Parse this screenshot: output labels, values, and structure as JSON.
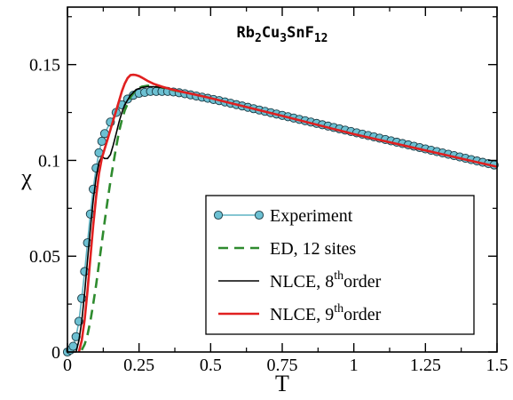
{
  "chart_data": {
    "type": "line",
    "title": {
      "base": "Rb",
      "parts": [
        [
          "2",
          "sub"
        ],
        [
          "Cu",
          ""
        ],
        [
          "3",
          "sub"
        ],
        [
          "SnF",
          ""
        ],
        [
          "12",
          "sub"
        ]
      ]
    },
    "xlabel": "T",
    "ylabel": "χ",
    "xlim": [
      0,
      1.5
    ],
    "ylim": [
      0,
      0.18
    ],
    "xticks": [
      0,
      0.25,
      0.5,
      0.75,
      1,
      1.25,
      1.5
    ],
    "xtick_labels": [
      "0",
      "0.25",
      "0.5",
      "0.75",
      "1",
      "1.25",
      "1.5"
    ],
    "yticks": [
      0,
      0.05,
      0.1,
      0.15
    ],
    "ytick_labels": [
      "0",
      "0.05",
      "0.1",
      "0.15"
    ],
    "grid": false,
    "legend_position": "lower-right",
    "series": [
      {
        "name": "Experiment",
        "style": "line-markers",
        "color": "#5fb3c3",
        "marker_fill": "#6cc0d2",
        "x": [
          0.0,
          0.01,
          0.02,
          0.03,
          0.04,
          0.05,
          0.06,
          0.07,
          0.08,
          0.09,
          0.1,
          0.11,
          0.12,
          0.13,
          0.15,
          0.17,
          0.19,
          0.21,
          0.23,
          0.25,
          0.27,
          0.29,
          0.31,
          0.33,
          0.35,
          0.37,
          0.39,
          0.41,
          0.43,
          0.45,
          0.47,
          0.49,
          0.51,
          0.53,
          0.55,
          0.57,
          0.59,
          0.61,
          0.63,
          0.65,
          0.67,
          0.69,
          0.71,
          0.73,
          0.75,
          0.77,
          0.79,
          0.81,
          0.83,
          0.85,
          0.87,
          0.89,
          0.91,
          0.93,
          0.95,
          0.97,
          0.99,
          1.01,
          1.03,
          1.05,
          1.07,
          1.09,
          1.11,
          1.13,
          1.15,
          1.17,
          1.19,
          1.21,
          1.23,
          1.25,
          1.27,
          1.29,
          1.31,
          1.33,
          1.35,
          1.37,
          1.39,
          1.41,
          1.43,
          1.45,
          1.47,
          1.49
        ],
        "y": [
          0.0,
          0.001,
          0.003,
          0.008,
          0.016,
          0.028,
          0.042,
          0.057,
          0.072,
          0.085,
          0.096,
          0.104,
          0.11,
          0.114,
          0.12,
          0.125,
          0.129,
          0.132,
          0.134,
          0.135,
          0.1355,
          0.136,
          0.136,
          0.136,
          0.136,
          0.1357,
          0.1353,
          0.1348,
          0.1342,
          0.1336,
          0.133,
          0.1324,
          0.1318,
          0.1312,
          0.1305,
          0.1298,
          0.1291,
          0.1284,
          0.1277,
          0.127,
          0.1263,
          0.1256,
          0.1249,
          0.1242,
          0.1235,
          0.1228,
          0.1221,
          0.1214,
          0.1207,
          0.12,
          0.1193,
          0.1186,
          0.1179,
          0.1172,
          0.1165,
          0.1158,
          0.1151,
          0.1144,
          0.1137,
          0.113,
          0.1123,
          0.1116,
          0.1109,
          0.1102,
          0.1095,
          0.1088,
          0.1081,
          0.1074,
          0.1067,
          0.106,
          0.1053,
          0.1046,
          0.1039,
          0.1032,
          0.1025,
          0.1018,
          0.1011,
          0.1004,
          0.0997,
          0.099,
          0.0983,
          0.0976
        ]
      },
      {
        "name": "ED, 12 sites",
        "style": "dashed",
        "color": "#2e8b2e",
        "x": [
          0.05,
          0.06,
          0.07,
          0.08,
          0.09,
          0.1,
          0.11,
          0.12,
          0.13,
          0.14,
          0.15,
          0.16,
          0.17,
          0.18,
          0.19,
          0.2,
          0.22,
          0.24,
          0.26,
          0.28,
          0.3,
          0.33,
          0.36,
          0.4
        ],
        "y": [
          0.001,
          0.004,
          0.009,
          0.016,
          0.025,
          0.035,
          0.046,
          0.057,
          0.068,
          0.079,
          0.089,
          0.098,
          0.107,
          0.115,
          0.121,
          0.126,
          0.133,
          0.137,
          0.1385,
          0.139,
          0.1388,
          0.138,
          0.137,
          0.1357
        ]
      },
      {
        "name": "NLCE, 8",
        "name_sup": "th",
        "name_suffix": "order",
        "style": "solid",
        "color": "#000000",
        "x": [
          0.03,
          0.04,
          0.05,
          0.06,
          0.07,
          0.08,
          0.09,
          0.1,
          0.11,
          0.12,
          0.13,
          0.14,
          0.15,
          0.16,
          0.17,
          0.18,
          0.19,
          0.2,
          0.22,
          0.24,
          0.26,
          0.28,
          0.3,
          0.33,
          0.36,
          0.4,
          0.45,
          0.5,
          0.6,
          0.75,
          1.0,
          1.25,
          1.5
        ],
        "y": [
          0.0,
          0.006,
          0.016,
          0.031,
          0.048,
          0.064,
          0.079,
          0.091,
          0.099,
          0.102,
          0.101,
          0.101,
          0.103,
          0.108,
          0.114,
          0.12,
          0.125,
          0.129,
          0.134,
          0.137,
          0.138,
          0.1385,
          0.1385,
          0.138,
          0.1372,
          0.1358,
          0.1342,
          0.1325,
          0.1288,
          0.1232,
          0.1137,
          0.1052,
          0.0967
        ]
      },
      {
        "name": "NLCE, 9",
        "name_sup": "th",
        "name_suffix": "order",
        "style": "solid",
        "color": "#e02020",
        "x": [
          0.04,
          0.05,
          0.06,
          0.07,
          0.08,
          0.09,
          0.1,
          0.11,
          0.12,
          0.13,
          0.14,
          0.15,
          0.16,
          0.17,
          0.18,
          0.19,
          0.2,
          0.21,
          0.22,
          0.23,
          0.24,
          0.25,
          0.26,
          0.28,
          0.3,
          0.33,
          0.36,
          0.4,
          0.45,
          0.5,
          0.6,
          0.75,
          1.0,
          1.25,
          1.5
        ],
        "y": [
          0.0,
          0.006,
          0.017,
          0.032,
          0.049,
          0.066,
          0.081,
          0.093,
          0.101,
          0.106,
          0.111,
          0.116,
          0.121,
          0.126,
          0.131,
          0.136,
          0.14,
          0.143,
          0.1445,
          0.1447,
          0.1445,
          0.144,
          0.1432,
          0.1415,
          0.14,
          0.1385,
          0.1372,
          0.1358,
          0.1342,
          0.1325,
          0.1288,
          0.1232,
          0.1137,
          0.1052,
          0.0967
        ]
      }
    ]
  }
}
